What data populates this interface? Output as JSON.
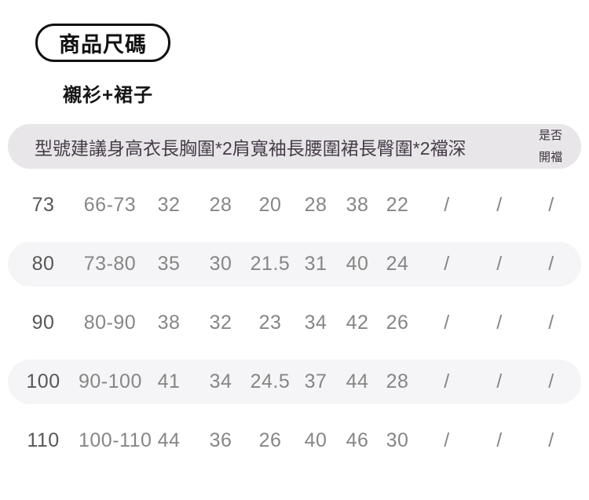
{
  "page": {
    "title": "商品尺碼",
    "subtitle": "襯衫+裙子"
  },
  "colors": {
    "header_band": "#e8e6e8",
    "stripe_band": "#f5f4f6",
    "header_text": "#463c49",
    "data_text": "#868686",
    "model_text": "#575757",
    "title_border": "#111111"
  },
  "table": {
    "headers": [
      "型號",
      "建議身高",
      "衣長",
      "胸圍*2",
      "肩寬",
      "袖長",
      "腰圍",
      "裙長",
      "臀圍*2",
      "襠深"
    ],
    "last_header_lines": [
      "是否",
      "開襠"
    ],
    "rows": [
      {
        "cells": [
          "73",
          "66-73",
          "32",
          "28",
          "20",
          "28",
          "38",
          "22",
          "/",
          "/",
          "/"
        ]
      },
      {
        "cells": [
          "80",
          "73-80",
          "35",
          "30",
          "21.5",
          "31",
          "40",
          "24",
          "/",
          "/",
          "/"
        ]
      },
      {
        "cells": [
          "90",
          "80-90",
          "38",
          "32",
          "23",
          "34",
          "42",
          "26",
          "/",
          "/",
          "/"
        ]
      },
      {
        "cells": [
          "100",
          "90-100",
          "41",
          "34",
          "24.5",
          "37",
          "44",
          "28",
          "/",
          "/",
          "/"
        ]
      },
      {
        "cells": [
          "110",
          "100-110",
          "44",
          "36",
          "26",
          "40",
          "46",
          "30",
          "/",
          "/",
          "/"
        ]
      }
    ]
  }
}
